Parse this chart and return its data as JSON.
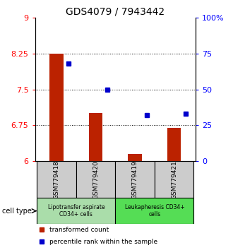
{
  "title": "GDS4079 / 7943442",
  "samples": [
    "GSM779418",
    "GSM779420",
    "GSM779419",
    "GSM779421"
  ],
  "red_values": [
    8.25,
    7.0,
    6.15,
    6.7
  ],
  "blue_values_pct": [
    68,
    50,
    32,
    33
  ],
  "ylim_left": [
    6,
    9
  ],
  "ylim_right": [
    0,
    100
  ],
  "yticks_left": [
    6,
    6.75,
    7.5,
    8.25,
    9
  ],
  "ytick_labels_left": [
    "6",
    "6.75",
    "7.5",
    "8.25",
    "9"
  ],
  "yticks_right": [
    0,
    25,
    50,
    75,
    100
  ],
  "ytick_labels_right": [
    "0",
    "25",
    "50",
    "75",
    "100%"
  ],
  "hlines": [
    6.75,
    7.5,
    8.25
  ],
  "group1_label": "Lipotransfer aspirate\nCD34+ cells",
  "group2_label": "Leukapheresis CD34+\ncells",
  "cell_type_label": "cell type",
  "legend_red": "transformed count",
  "legend_blue": "percentile rank within the sample",
  "bar_bottom": 6,
  "bar_color": "#bb2200",
  "dot_color": "#0000cc",
  "group1_bg": "#aaddaa",
  "group2_bg": "#55dd55",
  "sample_bg": "#cccccc",
  "title_fontsize": 10,
  "tick_fontsize": 8,
  "bar_width": 0.35
}
